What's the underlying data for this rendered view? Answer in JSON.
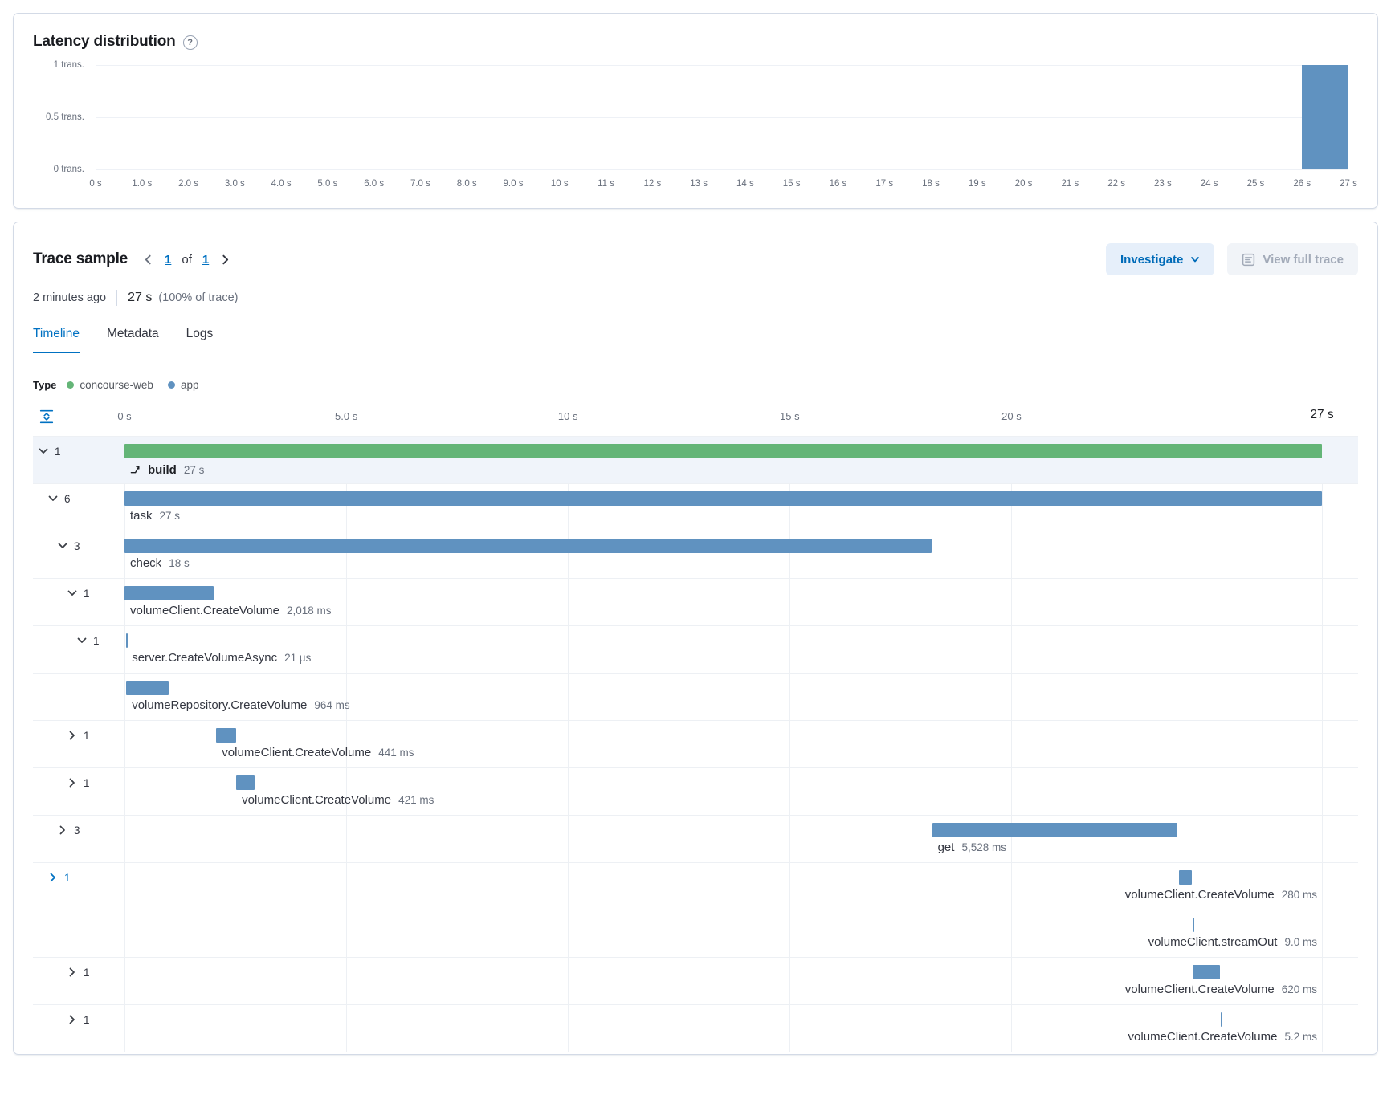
{
  "colors": {
    "accent_blue": "#0071c2",
    "bar_blue": "#6092c0",
    "bar_green": "#64b577",
    "selected_row_bg": "#f0f4fa"
  },
  "latency": {
    "title": "Latency distribution",
    "help_glyph": "?",
    "chart_data": {
      "type": "bar",
      "title": "Latency distribution",
      "x_max_s": 27,
      "x_tick_labels": [
        "0 s",
        "1.0 s",
        "2.0 s",
        "3.0 s",
        "4.0 s",
        "5.0 s",
        "6.0 s",
        "7.0 s",
        "8.0 s",
        "9.0 s",
        "10 s",
        "11 s",
        "12 s",
        "13 s",
        "14 s",
        "15 s",
        "16 s",
        "17 s",
        "18 s",
        "19 s",
        "20 s",
        "21 s",
        "22 s",
        "23 s",
        "24 s",
        "25 s",
        "26 s",
        "27 s"
      ],
      "y_tick_labels": [
        "1 trans.",
        "0.5 trans.",
        "0 trans."
      ],
      "ylim": [
        0,
        1
      ],
      "bars": [
        {
          "bin_start_s": 26,
          "bin_end_s": 27,
          "count": 1
        }
      ]
    }
  },
  "trace": {
    "title": "Trace sample",
    "pager": {
      "current": "1",
      "of_label": "of",
      "total": "1"
    },
    "investigate_label": "Investigate",
    "view_full_trace_label": "View full trace",
    "meta": {
      "age": "2 minutes ago",
      "duration": "27 s",
      "duration_note": "(100% of trace)"
    },
    "tabs": [
      {
        "label": "Timeline",
        "active": true
      },
      {
        "label": "Metadata",
        "active": false
      },
      {
        "label": "Logs",
        "active": false
      }
    ],
    "legend": {
      "label": "Type",
      "items": [
        {
          "label": "concourse-web",
          "color": "#64b577"
        },
        {
          "label": "app",
          "color": "#6092c0"
        }
      ]
    },
    "axis": {
      "ticks": [
        {
          "label": "0 s",
          "s": 0,
          "emphasis": false
        },
        {
          "label": "5.0 s",
          "s": 5,
          "emphasis": false
        },
        {
          "label": "10 s",
          "s": 10,
          "emphasis": false
        },
        {
          "label": "15 s",
          "s": 15,
          "emphasis": false
        },
        {
          "label": "20 s",
          "s": 20,
          "emphasis": false
        },
        {
          "label": "27 s",
          "s": 27,
          "emphasis": true
        }
      ]
    },
    "waterfall": {
      "total_s": 27,
      "rows": [
        {
          "name": "build",
          "duration": "27 s",
          "start_s": 0,
          "dur_s": 27,
          "depth": 0,
          "chevron": "down",
          "count": "1",
          "color": "green",
          "tick": false,
          "label_align": "bar-start",
          "selected": true,
          "accent": false,
          "icon": "transaction-icon",
          "name_bold": true
        },
        {
          "name": "task",
          "duration": "27 s",
          "start_s": 0,
          "dur_s": 27,
          "depth": 1,
          "chevron": "down",
          "count": "6",
          "color": "blue",
          "tick": false,
          "label_align": "bar-start",
          "selected": false,
          "accent": false,
          "icon": null,
          "name_bold": false
        },
        {
          "name": "check",
          "duration": "18 s",
          "start_s": 0,
          "dur_s": 18.2,
          "depth": 2,
          "chevron": "down",
          "count": "3",
          "color": "blue",
          "tick": false,
          "label_align": "bar-start",
          "selected": false,
          "accent": false,
          "icon": null,
          "name_bold": false
        },
        {
          "name": "volumeClient.CreateVolume",
          "duration": "2,018 ms",
          "start_s": 0,
          "dur_s": 2.018,
          "depth": 3,
          "chevron": "down",
          "count": "1",
          "color": "blue",
          "tick": false,
          "label_align": "bar-start",
          "selected": false,
          "accent": false,
          "icon": null,
          "name_bold": false
        },
        {
          "name": "server.CreateVolumeAsync",
          "duration": "21 µs",
          "start_s": 0.04,
          "dur_s": 2.1e-05,
          "depth": 4,
          "chevron": "down",
          "count": "1",
          "color": "blue",
          "tick": true,
          "label_align": "bar-start",
          "selected": false,
          "accent": false,
          "icon": null,
          "name_bold": false
        },
        {
          "name": "volumeRepository.CreateVolume",
          "duration": "964 ms",
          "start_s": 0.04,
          "dur_s": 0.964,
          "depth": 5,
          "chevron": "none",
          "count": "",
          "color": "blue",
          "tick": false,
          "label_align": "bar-start",
          "selected": false,
          "accent": false,
          "icon": null,
          "name_bold": false
        },
        {
          "name": "volumeClient.CreateVolume",
          "duration": "441 ms",
          "start_s": 2.07,
          "dur_s": 0.441,
          "depth": 3,
          "chevron": "right",
          "count": "1",
          "color": "blue",
          "tick": false,
          "label_align": "bar-start",
          "selected": false,
          "accent": false,
          "icon": null,
          "name_bold": false
        },
        {
          "name": "volumeClient.CreateVolume",
          "duration": "421 ms",
          "start_s": 2.52,
          "dur_s": 0.421,
          "depth": 3,
          "chevron": "right",
          "count": "1",
          "color": "blue",
          "tick": false,
          "label_align": "bar-start",
          "selected": false,
          "accent": false,
          "icon": null,
          "name_bold": false
        },
        {
          "name": "get",
          "duration": "5,528 ms",
          "start_s": 18.21,
          "dur_s": 5.528,
          "depth": 2,
          "chevron": "right",
          "count": "3",
          "color": "blue",
          "tick": false,
          "label_align": "bar-start",
          "selected": false,
          "accent": false,
          "icon": null,
          "name_bold": false
        },
        {
          "name": "volumeClient.CreateVolume",
          "duration": "280 ms",
          "start_s": 23.78,
          "dur_s": 0.28,
          "depth": 1,
          "chevron": "right",
          "count": "1",
          "color": "blue",
          "tick": false,
          "label_align": "right-edge",
          "selected": false,
          "accent": true,
          "icon": null,
          "name_bold": false
        },
        {
          "name": "volumeClient.streamOut",
          "duration": "9.0 ms",
          "start_s": 24.08,
          "dur_s": 0.009,
          "depth": 2,
          "chevron": "none",
          "count": "",
          "color": "blue",
          "tick": true,
          "label_align": "right-edge",
          "selected": false,
          "accent": false,
          "icon": null,
          "name_bold": false
        },
        {
          "name": "volumeClient.CreateVolume",
          "duration": "620 ms",
          "start_s": 24.08,
          "dur_s": 0.62,
          "depth": 3,
          "chevron": "right",
          "count": "1",
          "color": "blue",
          "tick": false,
          "label_align": "right-edge",
          "selected": false,
          "accent": false,
          "icon": null,
          "name_bold": false
        },
        {
          "name": "volumeClient.CreateVolume",
          "duration": "5.2 ms",
          "start_s": 24.72,
          "dur_s": 0.0052,
          "depth": 3,
          "chevron": "right",
          "count": "1",
          "color": "blue",
          "tick": true,
          "label_align": "right-edge",
          "selected": false,
          "accent": false,
          "icon": null,
          "name_bold": false
        }
      ]
    }
  }
}
